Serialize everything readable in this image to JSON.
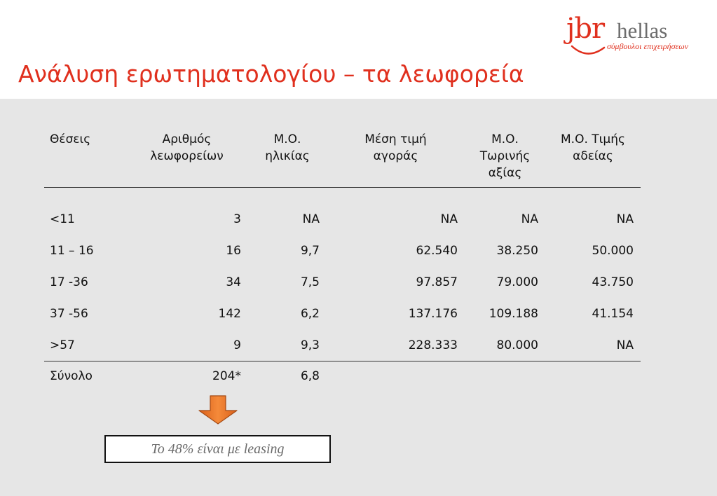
{
  "title": "Ανάλυση ερωτηματολογίου – τα λεωφορεία",
  "logo": {
    "brand": "jbr",
    "name": "hellas",
    "tagline": "σύμβουλοι επιχειρήσεων",
    "brand_color": "#e0301e"
  },
  "table": {
    "headers": [
      [
        "Θέσεις"
      ],
      [
        "Αριθμός",
        "λεωφορείων"
      ],
      [
        "Μ.Ο.",
        "ηλικίας"
      ],
      [
        "Μέση τιμή",
        "αγοράς"
      ],
      [
        "Μ.Ο.",
        "Τωρινής",
        "αξίας"
      ],
      [
        "Μ.Ο. Τιμής",
        "αδείας"
      ]
    ],
    "rows": [
      [
        "<11",
        "3",
        "NA",
        "NA",
        "NA",
        "NA"
      ],
      [
        "11 – 16",
        "16",
        "9,7",
        "62.540",
        "38.250",
        "50.000"
      ],
      [
        "17 -36",
        "34",
        "7,5",
        "97.857",
        "79.000",
        "43.750"
      ],
      [
        "37 -56",
        "142",
        "6,2",
        "137.176",
        "109.188",
        "41.154"
      ],
      [
        ">57",
        "9",
        "9,3",
        "228.333",
        "80.000",
        "NA"
      ]
    ],
    "total": [
      "Σύνολο",
      "204*",
      "6,8",
      "",
      "",
      ""
    ]
  },
  "note": "Το 48% είναι με leasing",
  "colors": {
    "accent": "#e0301e",
    "panel_bg": "#e6e6e6",
    "arrow_fill": "#f07f2f"
  }
}
